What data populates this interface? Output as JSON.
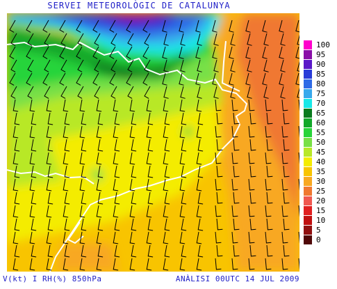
{
  "header": {
    "title": "SERVEI METEOROLÒGIC DE CATALUNYA"
  },
  "footer": {
    "variables": "V(kt) I RH(%) 850hPa",
    "analysis": "ANÀLISI 00UTC 14 JUL 2009"
  },
  "legend": {
    "items": [
      {
        "label": "100",
        "color": "#ff00cc"
      },
      {
        "label": "95",
        "color": "#8a0fa8"
      },
      {
        "label": "90",
        "color": "#5a18c8"
      },
      {
        "label": "85",
        "color": "#2a3cd8"
      },
      {
        "label": "80",
        "color": "#2f6ae6"
      },
      {
        "label": "75",
        "color": "#38a8ec"
      },
      {
        "label": "70",
        "color": "#18e8e8"
      },
      {
        "label": "65",
        "color": "#0a7a1e"
      },
      {
        "label": "60",
        "color": "#12a82a"
      },
      {
        "label": "55",
        "color": "#28d43a"
      },
      {
        "label": "50",
        "color": "#78e046"
      },
      {
        "label": "45",
        "color": "#b8e828"
      },
      {
        "label": "40",
        "color": "#f4ec00"
      },
      {
        "label": "35",
        "color": "#f8c400"
      },
      {
        "label": "30",
        "color": "#f8a820"
      },
      {
        "label": "25",
        "color": "#f07830"
      },
      {
        "label": "20",
        "color": "#f05850"
      },
      {
        "label": "15",
        "color": "#e02020"
      },
      {
        "label": "10",
        "color": "#c01010"
      },
      {
        "label": "5",
        "color": "#901010"
      },
      {
        "label": "0",
        "color": "#500808"
      }
    ]
  }
}
